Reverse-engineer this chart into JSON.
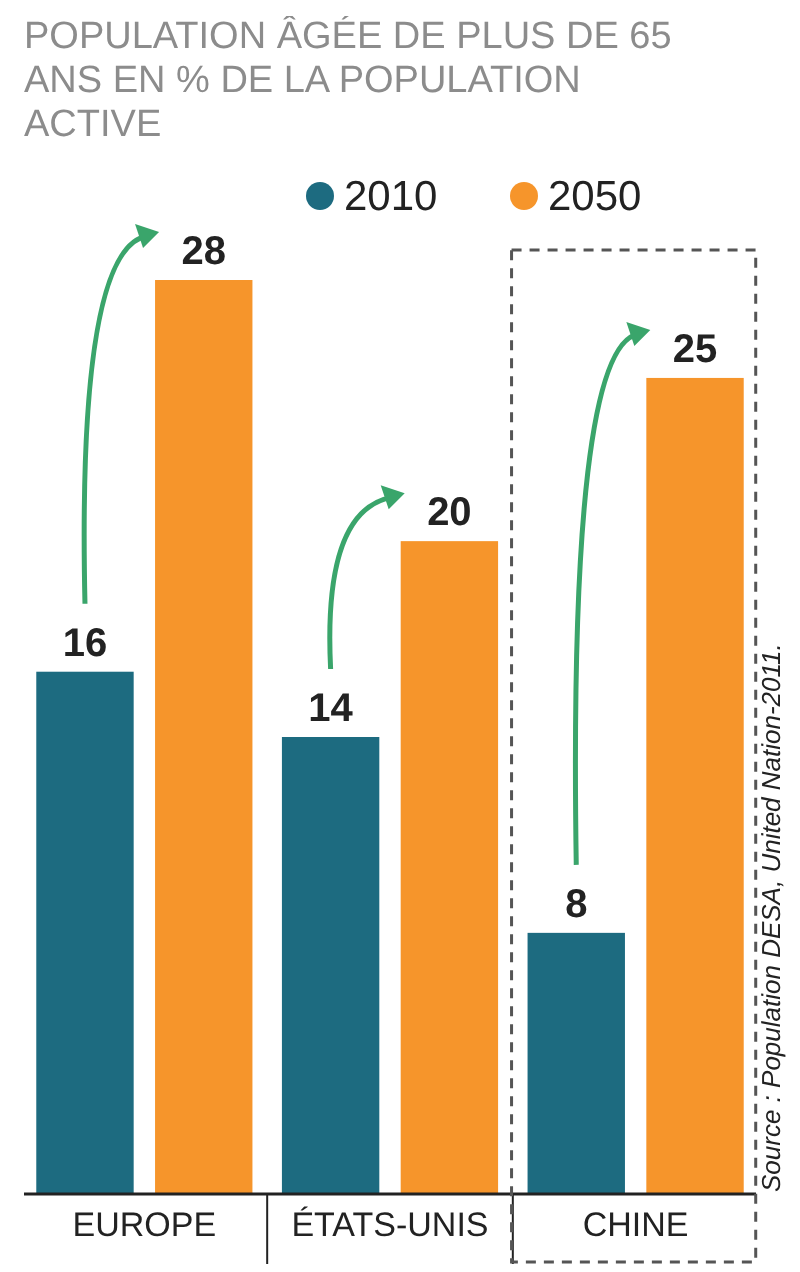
{
  "chart_data": {
    "type": "bar",
    "title": "POPULATION ÂGÉE DE PLUS DE 65 ANS EN % DE LA POPULATION ACTIVE",
    "categories": [
      "EUROPE",
      "ÉTATS-UNIS",
      "CHINE"
    ],
    "series": [
      {
        "name": "2010",
        "color": "#1d6b80",
        "values": [
          16,
          14,
          8
        ]
      },
      {
        "name": "2050",
        "color": "#f6952b",
        "values": [
          28,
          20,
          25
        ]
      }
    ],
    "data_labels": true,
    "legend": "top right",
    "grid": false,
    "annotations": [
      "Source : Population DESA, United Nation-2011."
    ]
  }
}
